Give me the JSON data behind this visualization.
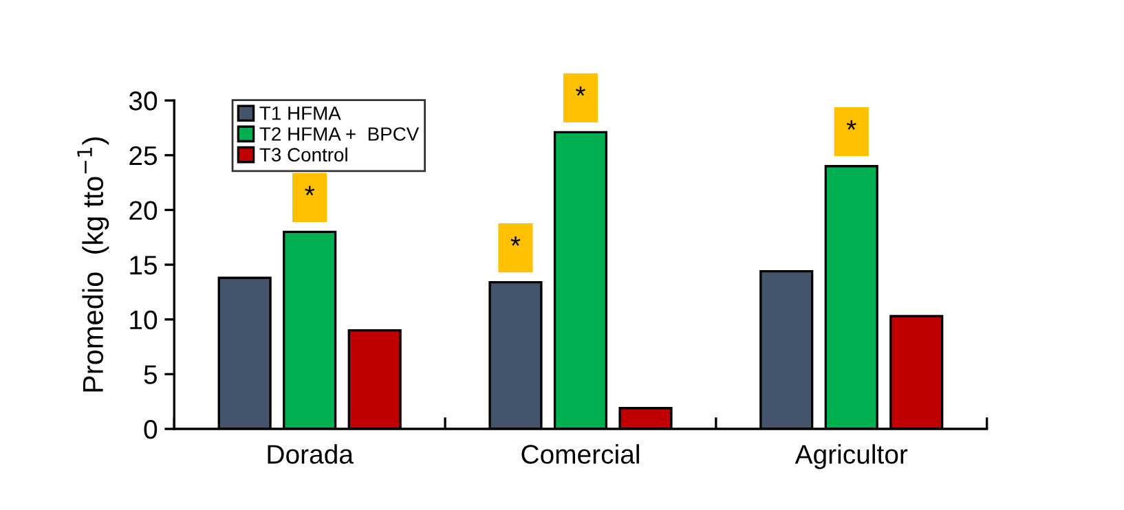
{
  "chart_data": {
    "type": "bar",
    "ylabel": "Promedio  (kg tto$^{−1}$)",
    "categories": [
      "Dorada",
      "Comercial",
      "Agricultor"
    ],
    "series": [
      {
        "name": "T1 HFMA",
        "color": "#44546a",
        "values": [
          13.8,
          13.4,
          14.4
        ],
        "value_labels": [
          null,
          "*",
          null
        ]
      },
      {
        "name": "T2 HFMA +  BPCV",
        "color": "#00b050",
        "values": [
          18.0,
          27.1,
          24.0
        ],
        "value_labels": [
          "*",
          "*",
          "*"
        ]
      },
      {
        "name": "T3 Control",
        "color": "#c00000",
        "values": [
          9.0,
          1.9,
          10.3
        ]
      }
    ],
    "ylim": [
      0,
      30
    ],
    "yticks": [
      0,
      5,
      10,
      15,
      20,
      25,
      30
    ],
    "grid": false,
    "legend": "top left"
  }
}
